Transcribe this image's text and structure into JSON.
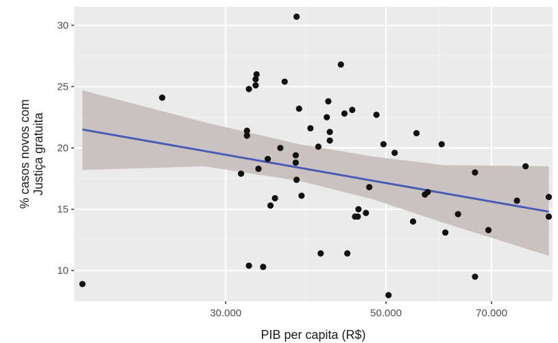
{
  "chart_data": {
    "type": "scatter",
    "title": "",
    "xlabel": "PIB per capita (R$)",
    "ylabel_lines": [
      "% casos novos com",
      "Justiça gratuita"
    ],
    "x_scale": "log",
    "xlim": [
      18500,
      85000
    ],
    "ylim": [
      7.5,
      31.5
    ],
    "x_ticks": [
      {
        "value": 30000,
        "label": "30.000"
      },
      {
        "value": 50000,
        "label": "50.000"
      },
      {
        "value": 70000,
        "label": "70.000"
      }
    ],
    "y_ticks": [
      {
        "value": 10,
        "label": "10"
      },
      {
        "value": 15,
        "label": "15"
      },
      {
        "value": 20,
        "label": "20"
      },
      {
        "value": 25,
        "label": "25"
      },
      {
        "value": 30,
        "label": "30"
      }
    ],
    "grid": true,
    "legend": "none",
    "colors": {
      "panel_background": "#ebebeb",
      "grid_major": "#ffffff",
      "grid_minor": "#f5f5f5",
      "points": "#111111",
      "trend_line": "#4a5bb5",
      "confidence_band": "#c6bebd"
    },
    "points": [
      {
        "x": 19000,
        "y": 8.9
      },
      {
        "x": 24500,
        "y": 24.1
      },
      {
        "x": 31500,
        "y": 17.9
      },
      {
        "x": 32100,
        "y": 21.4
      },
      {
        "x": 32100,
        "y": 21.0
      },
      {
        "x": 32300,
        "y": 24.8
      },
      {
        "x": 32300,
        "y": 10.4
      },
      {
        "x": 33000,
        "y": 25.1
      },
      {
        "x": 33000,
        "y": 25.6
      },
      {
        "x": 33100,
        "y": 26.0
      },
      {
        "x": 33300,
        "y": 18.3
      },
      {
        "x": 33800,
        "y": 10.3
      },
      {
        "x": 34300,
        "y": 19.1
      },
      {
        "x": 34600,
        "y": 15.3
      },
      {
        "x": 35100,
        "y": 15.9
      },
      {
        "x": 35700,
        "y": 20.0
      },
      {
        "x": 36200,
        "y": 25.4
      },
      {
        "x": 37600,
        "y": 30.7
      },
      {
        "x": 37500,
        "y": 19.4
      },
      {
        "x": 37500,
        "y": 18.8
      },
      {
        "x": 37600,
        "y": 17.4
      },
      {
        "x": 37900,
        "y": 23.2
      },
      {
        "x": 38200,
        "y": 16.1
      },
      {
        "x": 39300,
        "y": 21.6
      },
      {
        "x": 40300,
        "y": 20.1
      },
      {
        "x": 40600,
        "y": 11.4
      },
      {
        "x": 41400,
        "y": 22.5
      },
      {
        "x": 41600,
        "y": 23.8
      },
      {
        "x": 41800,
        "y": 21.3
      },
      {
        "x": 41800,
        "y": 20.6
      },
      {
        "x": 43300,
        "y": 26.8
      },
      {
        "x": 43800,
        "y": 22.8
      },
      {
        "x": 44200,
        "y": 11.4
      },
      {
        "x": 44900,
        "y": 23.1
      },
      {
        "x": 45300,
        "y": 14.4
      },
      {
        "x": 45700,
        "y": 14.4
      },
      {
        "x": 45800,
        "y": 15.0
      },
      {
        "x": 46900,
        "y": 14.7
      },
      {
        "x": 47400,
        "y": 16.8
      },
      {
        "x": 48500,
        "y": 22.7
      },
      {
        "x": 49600,
        "y": 20.3
      },
      {
        "x": 50400,
        "y": 8.0
      },
      {
        "x": 51400,
        "y": 19.6
      },
      {
        "x": 54500,
        "y": 14.0
      },
      {
        "x": 55100,
        "y": 21.2
      },
      {
        "x": 56600,
        "y": 16.2
      },
      {
        "x": 57100,
        "y": 16.4
      },
      {
        "x": 59700,
        "y": 20.3
      },
      {
        "x": 60400,
        "y": 13.1
      },
      {
        "x": 62900,
        "y": 14.6
      },
      {
        "x": 66400,
        "y": 18.0
      },
      {
        "x": 66400,
        "y": 9.5
      },
      {
        "x": 69300,
        "y": 13.3
      },
      {
        "x": 75900,
        "y": 15.7
      },
      {
        "x": 78000,
        "y": 18.5
      },
      {
        "x": 84000,
        "y": 16.0
      },
      {
        "x": 84000,
        "y": 14.4
      }
    ],
    "trend_line": [
      {
        "x": 19000,
        "y": 21.5
      },
      {
        "x": 84000,
        "y": 14.8
      }
    ],
    "confidence_band": [
      {
        "x": 19000,
        "lower": 18.2,
        "upper": 24.7
      },
      {
        "x": 28000,
        "lower": 18.5,
        "upper": 22.1
      },
      {
        "x": 38000,
        "lower": 17.3,
        "upper": 20.3
      },
      {
        "x": 48000,
        "lower": 15.8,
        "upper": 19.3
      },
      {
        "x": 60000,
        "lower": 13.9,
        "upper": 18.6
      },
      {
        "x": 84000,
        "lower": 11.2,
        "upper": 18.5
      }
    ]
  }
}
